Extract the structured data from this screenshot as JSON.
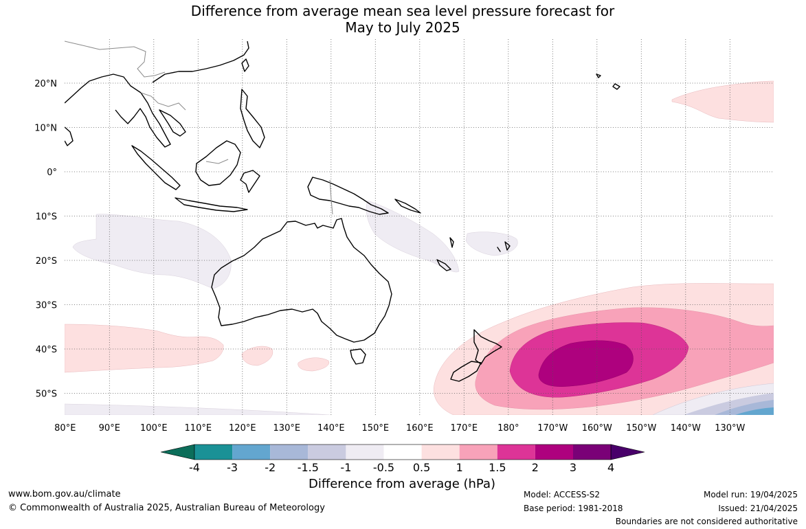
{
  "header": {
    "title_line1": "Difference from average mean sea level pressure forecast for",
    "title_line2": "May to July 2025"
  },
  "map": {
    "lat_labels": [
      "20°N",
      "10°N",
      "0°",
      "10°S",
      "20°S",
      "30°S",
      "40°S",
      "50°S"
    ],
    "lon_labels": [
      "80°E",
      "90°E",
      "100°E",
      "110°E",
      "120°E",
      "130°E",
      "140°E",
      "150°E",
      "160°E",
      "170°E",
      "180°",
      "170°W",
      "160°W",
      "150°W",
      "140°W",
      "130°W"
    ],
    "colors": {
      "lt_-3": "#147a6a",
      "-3_-2": "#1a9196",
      "-2_-1.5": "#63a6cf",
      "-1.5_-1": "#a8b8d8",
      "-1_-0.5": "#cacbe0",
      "-0.5_-0.5": "#efecf3",
      "0.5_1": "#fde0e0",
      "1_1.5": "#f8a2b9",
      "1.5_2": "#dd3497",
      "2_3": "#ae017e",
      "3_4": "#7a0177",
      "gt_4": "#49006a"
    }
  },
  "colorbar": {
    "labels": [
      "-4",
      "-3",
      "-2",
      "-1.5",
      "-1",
      "-0.5",
      "0.5",
      "1",
      "1.5",
      "2",
      "3",
      "4"
    ],
    "colors": [
      "#1a9196",
      "#63a6cf",
      "#a8b8d8",
      "#cacbe0",
      "#efecf3",
      "#ffffff",
      "#fde0e0",
      "#f8a2b9",
      "#dd3497",
      "#ae017e",
      "#7a0177"
    ],
    "low_extend_color": "#0c6e5a",
    "high_extend_color": "#49006a",
    "title": "Difference from average (hPa)"
  },
  "footer": {
    "website": "www.bom.gov.au/climate",
    "copyright": "© Commonwealth of Australia 2025, Australian Bureau of Meteorology",
    "model": "Model: ACCESS-S2",
    "base_period": "Base period: 1981-2018",
    "model_run": "Model run: 19/04/2025",
    "issued": "Issued: 21/04/2025",
    "disclaimer": "Boundaries are not considered authoritative"
  }
}
